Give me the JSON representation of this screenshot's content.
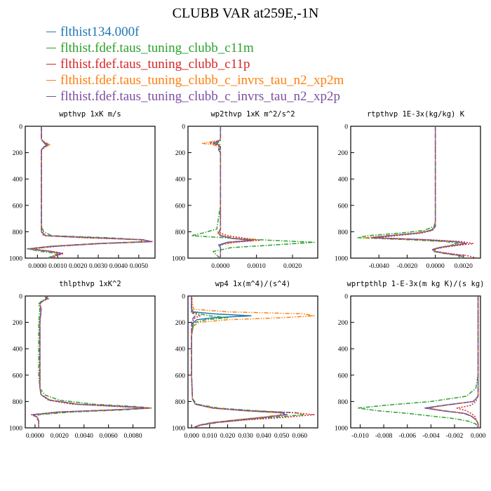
{
  "title": "CLUBB VAR at259E,-1N",
  "legend": [
    {
      "label": "flthist134.000f",
      "color": "#1f77b4"
    },
    {
      "label": "flthist.fdef.taus_tuning_clubb_c11m",
      "color": "#2ca02c"
    },
    {
      "label": "flthist.fdef.taus_tuning_clubb_c11p",
      "color": "#d62728"
    },
    {
      "label": "flthist.fdef.taus_tuning_clubb_c_invrs_tau_n2_xp2m",
      "color": "#ff7f0e"
    },
    {
      "label": "flthist.fdef.taus_tuning_clubb_c_invrs_tau_n2_xp2p",
      "color": "#7b4fa0"
    }
  ],
  "chart_data": [
    {
      "type": "line",
      "title": "wpthvp   1xK m/s",
      "xlim": [
        -0.0006,
        0.0058
      ],
      "ylim": [
        1000,
        0
      ],
      "xticks": [
        0,
        0.001,
        0.002,
        0.003,
        0.004,
        0.005
      ],
      "xticklabels": [
        "0.0000",
        "0.0010",
        "0.0020",
        "0.0030",
        "0.0040",
        "0.0050"
      ],
      "yticks": [
        0,
        200,
        400,
        600,
        800,
        1000
      ],
      "y": [
        0,
        100,
        120,
        140,
        160,
        180,
        200,
        400,
        600,
        750,
        800,
        830,
        845,
        860,
        875,
        890,
        910,
        930,
        950,
        965,
        980,
        1000
      ],
      "series": [
        {
          "x": [
            0.0002,
            0.0002,
            0.0003,
            0.0005,
            0.0003,
            0.0002,
            0.0002,
            0.0002,
            0.0002,
            0.0002,
            0.0002,
            0.0004,
            0.0028,
            0.0052,
            0.0056,
            0.003,
            0.0008,
            -0.0004,
            0.0007,
            0.0012,
            0.0009,
            0.0006
          ]
        },
        {
          "x": [
            0.0002,
            0.0002,
            0.0003,
            0.0004,
            0.0003,
            0.0002,
            0.0002,
            0.0002,
            0.0002,
            0.0002,
            0.0003,
            0.0007,
            0.0035,
            0.005,
            0.0052,
            0.0028,
            0.0006,
            -0.0005,
            0.0002,
            0.001,
            0.0008,
            0.0005
          ]
        },
        {
          "x": [
            0.0002,
            0.0002,
            0.0003,
            0.0006,
            0.0003,
            0.0002,
            0.0002,
            0.0002,
            0.0002,
            0.0002,
            0.0002,
            0.0003,
            0.0022,
            0.0051,
            0.0057,
            0.0032,
            0.001,
            -0.0003,
            0.0008,
            0.0013,
            0.001,
            0.0007
          ]
        },
        {
          "x": [
            0.0002,
            0.0002,
            0.0004,
            0.0006,
            0.0004,
            0.0002,
            0.0002,
            0.0002,
            0.0002,
            0.0002,
            0.0002,
            0.0004,
            0.0026,
            0.005,
            0.0055,
            0.0029,
            0.0007,
            -0.0004,
            0.0006,
            0.0011,
            0.0009,
            0.0006
          ]
        },
        {
          "x": [
            0.0002,
            0.0002,
            0.0003,
            0.0005,
            0.0003,
            0.0002,
            0.0002,
            0.0002,
            0.0002,
            0.0002,
            0.0002,
            0.0004,
            0.0027,
            0.0052,
            0.0056,
            0.003,
            0.0008,
            -0.0004,
            0.0007,
            0.0012,
            0.0009,
            0.0006
          ]
        }
      ]
    },
    {
      "type": "line",
      "title": "wp2thvp   1xK m^2/s^2",
      "xlim": [
        -0.0009,
        0.0027
      ],
      "ylim": [
        1000,
        0
      ],
      "xticks": [
        0,
        0.001,
        0.002
      ],
      "xticklabels": [
        "0.0000",
        "0.0010",
        "0.0020"
      ],
      "yticks": [
        0,
        200,
        400,
        600,
        800,
        1000
      ],
      "y": [
        0,
        100,
        110,
        120,
        130,
        140,
        150,
        160,
        180,
        200,
        400,
        600,
        780,
        810,
        830,
        850,
        865,
        880,
        900,
        920,
        950,
        980,
        1000
      ],
      "series": [
        {
          "x": [
            0,
            0,
            -5e-05,
            -0.0001,
            -0.0002,
            -5e-05,
            -5e-05,
            0,
            -5e-05,
            0,
            0,
            0,
            0,
            -5e-05,
            0,
            0.0003,
            0.0009,
            0.0002,
            -5e-05,
            0,
            0,
            0,
            0
          ]
        },
        {
          "x": [
            0,
            0,
            0,
            -5e-05,
            -0.0001,
            0,
            0,
            0,
            0,
            0,
            0,
            0,
            -0.0001,
            -0.0005,
            -0.0008,
            0.0004,
            0.0014,
            0.0026,
            0.0015,
            0.0003,
            -0.0002,
            -0.0001,
            0
          ]
        },
        {
          "x": [
            0,
            0,
            -5e-05,
            -0.0002,
            -0.0003,
            -0.0001,
            0,
            -5e-05,
            -5e-05,
            0,
            0,
            0,
            0,
            0,
            0.0002,
            0.0007,
            0.0011,
            0.0004,
            0,
            0,
            0,
            0,
            0
          ]
        },
        {
          "x": [
            0,
            0,
            -0.0001,
            -0.0003,
            -0.0005,
            -0.0002,
            -0.0001,
            -5e-05,
            0,
            0,
            0,
            0,
            0,
            -0.0001,
            0.0001,
            0.0005,
            0.001,
            0.0003,
            0,
            0,
            0,
            0,
            0
          ]
        },
        {
          "x": [
            0,
            0,
            -5e-05,
            -0.0001,
            -0.0002,
            -5e-05,
            -5e-05,
            0,
            -5e-05,
            0,
            0,
            0,
            0,
            -5e-05,
            0,
            0.0003,
            0.0009,
            0.0002,
            0,
            0,
            0,
            0,
            0
          ]
        }
      ]
    },
    {
      "type": "line",
      "title": "rtpthvp   1E-3x(kg/kg) K",
      "xlim": [
        -0.006,
        0.0032
      ],
      "ylim": [
        1000,
        0
      ],
      "xticks": [
        -0.004,
        -0.002,
        0,
        0.002
      ],
      "xticklabels": [
        "-0.0040",
        "-0.0020",
        "0.0000",
        "0.0020"
      ],
      "yticks": [
        0,
        200,
        400,
        600,
        800,
        1000
      ],
      "y": [
        0,
        200,
        400,
        600,
        720,
        760,
        790,
        810,
        830,
        845,
        860,
        875,
        890,
        905,
        920,
        935,
        950,
        965,
        980,
        1000
      ],
      "series": [
        {
          "x": [
            0,
            0,
            0,
            0,
            0,
            0,
            -0.0003,
            -0.0012,
            -0.0032,
            -0.0045,
            -0.0008,
            0.0015,
            0.0022,
            0.0012,
            0.0003,
            -0.0002,
            0,
            0.0008,
            0.0018,
            0.002
          ]
        },
        {
          "x": [
            0,
            0,
            0,
            0,
            0,
            -0.0001,
            -0.0008,
            -0.0025,
            -0.0048,
            -0.0055,
            -0.002,
            0.0008,
            0.0016,
            0.001,
            0.0002,
            -0.0002,
            -0.0001,
            0.0006,
            0.0016,
            0.0018
          ]
        },
        {
          "x": [
            0,
            0,
            0,
            0,
            0,
            0,
            -0.0002,
            -0.001,
            -0.0028,
            -0.0042,
            -0.0005,
            0.0019,
            0.0027,
            0.0015,
            0.0005,
            -0.0001,
            0.0001,
            0.001,
            0.0022,
            0.003
          ]
        },
        {
          "x": [
            0,
            0,
            0,
            0,
            0,
            0,
            -0.0004,
            -0.0014,
            -0.0035,
            -0.005,
            -0.0012,
            0.0013,
            0.0021,
            0.0011,
            0.0003,
            -0.0002,
            0,
            0.0007,
            0.0017,
            0.0019
          ]
        },
        {
          "x": [
            0,
            0,
            0,
            0,
            0,
            0,
            -0.0003,
            -0.0012,
            -0.0032,
            -0.0046,
            -0.0009,
            0.0014,
            0.0022,
            0.0012,
            0.0003,
            -0.0002,
            0,
            0.0008,
            0.0018,
            0.002
          ]
        }
      ]
    },
    {
      "type": "line",
      "title": "thlpthvp   1xK^2",
      "xlim": [
        -0.0008,
        0.0098
      ],
      "ylim": [
        1000,
        0
      ],
      "xticks": [
        0,
        0.002,
        0.004,
        0.006,
        0.008
      ],
      "xticklabels": [
        "0.0000",
        "0.0020",
        "0.0040",
        "0.0060",
        "0.0080"
      ],
      "yticks": [
        0,
        200,
        400,
        600,
        800,
        1000
      ],
      "y": [
        0,
        20,
        40,
        60,
        100,
        200,
        400,
        600,
        700,
        750,
        790,
        820,
        840,
        850,
        865,
        880,
        900,
        920,
        950,
        980,
        1000
      ],
      "series": [
        {
          "x": [
            0.0009,
            0.001,
            0.0006,
            0.0004,
            0.0005,
            0.0004,
            0.0004,
            0.0004,
            0.0004,
            0.0005,
            0.0012,
            0.0035,
            0.0075,
            0.0093,
            0.006,
            0.002,
            -0.0002,
            0.0002,
            0.0003,
            0.0003,
            0.0003
          ]
        },
        {
          "x": [
            0.0008,
            0.0009,
            0.0005,
            0.0003,
            0.0004,
            0.0003,
            0.0003,
            0.0003,
            0.0004,
            0.0008,
            0.002,
            0.0048,
            0.0085,
            0.0095,
            0.007,
            0.003,
            0.0003,
            0.0001,
            0.0003,
            0.0003,
            0.0003
          ]
        },
        {
          "x": [
            0.001,
            0.0011,
            0.0006,
            0.0004,
            0.0005,
            0.0004,
            0.0004,
            0.0004,
            0.0004,
            0.0005,
            0.0011,
            0.003,
            0.007,
            0.0094,
            0.0062,
            0.0018,
            -0.0003,
            0.0002,
            0.0003,
            0.0003,
            0.0003
          ]
        },
        {
          "x": [
            0.0009,
            0.001,
            0.0006,
            0.0004,
            0.0005,
            0.0004,
            0.0004,
            0.0004,
            0.0004,
            0.0005,
            0.0013,
            0.0036,
            0.0078,
            0.0095,
            0.0061,
            0.0021,
            -0.0001,
            0.0002,
            0.0003,
            0.0003,
            0.0003
          ]
        },
        {
          "x": [
            0.0009,
            0.001,
            0.0006,
            0.0004,
            0.0005,
            0.0004,
            0.0004,
            0.0004,
            0.0004,
            0.0005,
            0.0012,
            0.0035,
            0.0076,
            0.0093,
            0.006,
            0.002,
            -0.0002,
            0.0002,
            0.0003,
            0.0003,
            0.0003
          ]
        }
      ]
    },
    {
      "type": "line",
      "title": "wp4   1x(m^4)/(s^4)",
      "xlim": [
        -0.002,
        0.07
      ],
      "ylim": [
        1000,
        0
      ],
      "xticks": [
        0,
        0.01,
        0.02,
        0.03,
        0.04,
        0.05,
        0.06
      ],
      "xticklabels": [
        "0.000",
        "0.010",
        "0.020",
        "0.030",
        "0.040",
        "0.050",
        "0.060"
      ],
      "yticks": [
        0,
        200,
        400,
        600,
        800,
        1000
      ],
      "y": [
        0,
        100,
        120,
        135,
        150,
        165,
        180,
        200,
        230,
        260,
        300,
        400,
        600,
        780,
        820,
        850,
        870,
        885,
        900,
        920,
        940,
        960,
        980,
        1000
      ],
      "series": [
        {
          "x": [
            0,
            0,
            0.001,
            0.012,
            0.033,
            0.012,
            0.003,
            0.001,
            0.0005,
            0.0005,
            0,
            0,
            0,
            0.0005,
            0.002,
            0.012,
            0.03,
            0.05,
            0.052,
            0.04,
            0.025,
            0.012,
            0.004,
            0.001
          ]
        },
        {
          "x": [
            0,
            0,
            0.001,
            0.004,
            0.01,
            0.02,
            0.008,
            0.002,
            0.001,
            0.0005,
            0,
            0,
            0,
            0.0005,
            0.003,
            0.015,
            0.036,
            0.058,
            0.062,
            0.046,
            0.028,
            0.014,
            0.005,
            0.001
          ]
        },
        {
          "x": [
            0,
            0,
            0.0005,
            0.002,
            0.005,
            0.002,
            0.001,
            0.0005,
            0,
            0,
            0,
            0,
            0,
            0.0005,
            0.002,
            0.012,
            0.032,
            0.056,
            0.068,
            0.052,
            0.03,
            0.014,
            0.005,
            0.001
          ]
        },
        {
          "x": [
            0,
            0.001,
            0.02,
            0.062,
            0.068,
            0.05,
            0.02,
            0.004,
            0.001,
            0.0005,
            0,
            0,
            0,
            0.0005,
            0.002,
            0.011,
            0.029,
            0.048,
            0.05,
            0.038,
            0.024,
            0.011,
            0.004,
            0.001
          ]
        },
        {
          "x": [
            0,
            0,
            0,
            0.001,
            0.002,
            0.001,
            0.0005,
            0,
            0,
            0,
            0,
            0,
            0,
            0.0005,
            0.002,
            0.012,
            0.031,
            0.051,
            0.053,
            0.041,
            0.026,
            0.012,
            0.004,
            0.001
          ]
        }
      ]
    },
    {
      "type": "line",
      "title": "wprtpthlp   1-E-3x(m kg K)/(s kg)",
      "xlim": [
        -0.0108,
        0.0002
      ],
      "ylim": [
        1000,
        0
      ],
      "xticks": [
        -0.01,
        -0.008,
        -0.006,
        -0.004,
        -0.002,
        0
      ],
      "xticklabels": [
        "-0.010",
        "-0.008",
        "-0.006",
        "-0.004",
        "-0.002",
        "0.000"
      ],
      "yticks": [
        0,
        200,
        400,
        600,
        800,
        1000
      ],
      "y": [
        0,
        200,
        400,
        600,
        700,
        760,
        800,
        830,
        850,
        870,
        890,
        910,
        930,
        950,
        970,
        1000
      ],
      "series": [
        {
          "x": [
            0,
            0,
            0,
            0,
            0,
            0,
            -0.0004,
            -0.003,
            -0.0045,
            -0.003,
            -0.0012,
            -0.0006,
            -0.0003,
            -0.0001,
            0,
            0
          ]
        },
        {
          "x": [
            0,
            0,
            0,
            0,
            -0.0002,
            -0.001,
            -0.004,
            -0.008,
            -0.0102,
            -0.0085,
            -0.006,
            -0.004,
            -0.002,
            -0.0008,
            -0.0002,
            0
          ]
        },
        {
          "x": [
            0,
            0,
            0,
            0,
            0,
            0,
            -0.0002,
            -0.0006,
            -0.0018,
            -0.001,
            -0.0006,
            -0.0003,
            -0.0002,
            -0.0001,
            0,
            0
          ]
        },
        {
          "x": [
            0,
            0,
            0,
            0,
            0,
            0,
            -0.0004,
            -0.0028,
            -0.0042,
            -0.0028,
            -0.0011,
            -0.0005,
            -0.0003,
            -0.0001,
            0,
            0
          ]
        },
        {
          "x": [
            0,
            0,
            0,
            0,
            0,
            0,
            -0.0004,
            -0.003,
            -0.0045,
            -0.003,
            -0.0012,
            -0.0006,
            -0.0003,
            -0.0001,
            0,
            0
          ]
        }
      ]
    }
  ]
}
